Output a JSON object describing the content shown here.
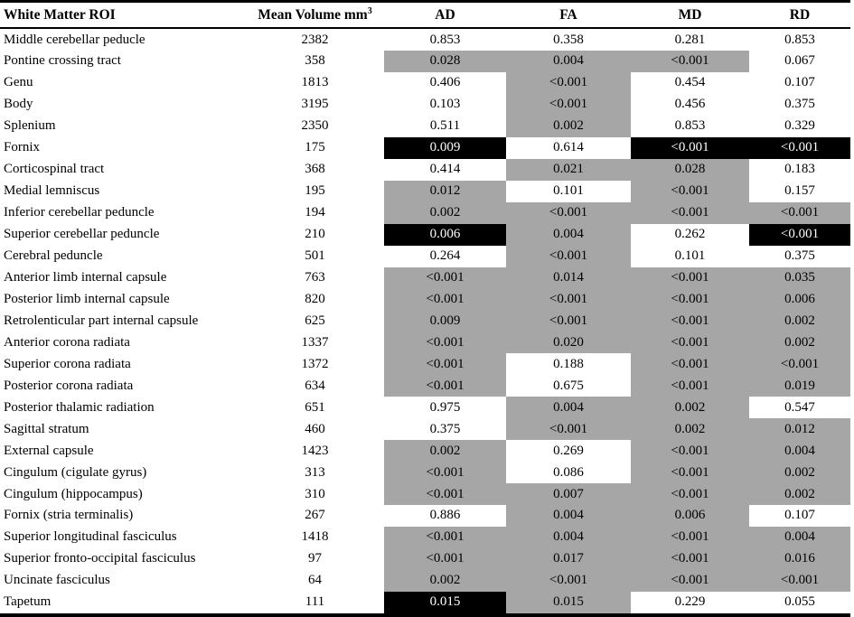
{
  "header": {
    "roi": "White Matter ROI",
    "volume_label": "Mean Volume mm",
    "volume_sup": "3",
    "metrics": [
      "AD",
      "FA",
      "MD",
      "RD"
    ]
  },
  "colors": {
    "cell_gray": "#a6a6a6",
    "cell_black": "#000000",
    "text": "#000000",
    "highlight_text": "#ffffff"
  },
  "rows": [
    {
      "roi": "Middle cerebellar peducle",
      "volume": "2382",
      "cells": [
        {
          "value": "0.853",
          "shade": "none"
        },
        {
          "value": "0.358",
          "shade": "none"
        },
        {
          "value": "0.281",
          "shade": "none"
        },
        {
          "value": "0.853",
          "shade": "none"
        }
      ]
    },
    {
      "roi": "Pontine crossing tract",
      "volume": "358",
      "cells": [
        {
          "value": "0.028",
          "shade": "gray"
        },
        {
          "value": "0.004",
          "shade": "gray"
        },
        {
          "value": "<0.001",
          "shade": "gray"
        },
        {
          "value": "0.067",
          "shade": "none"
        }
      ]
    },
    {
      "roi": "Genu",
      "volume": "1813",
      "cells": [
        {
          "value": "0.406",
          "shade": "none"
        },
        {
          "value": "<0.001",
          "shade": "gray"
        },
        {
          "value": "0.454",
          "shade": "none"
        },
        {
          "value": "0.107",
          "shade": "none"
        }
      ]
    },
    {
      "roi": "Body",
      "volume": "3195",
      "cells": [
        {
          "value": "0.103",
          "shade": "none"
        },
        {
          "value": "<0.001",
          "shade": "gray"
        },
        {
          "value": "0.456",
          "shade": "none"
        },
        {
          "value": "0.375",
          "shade": "none"
        }
      ]
    },
    {
      "roi": "Splenium",
      "volume": "2350",
      "cells": [
        {
          "value": "0.511",
          "shade": "none"
        },
        {
          "value": "0.002",
          "shade": "gray"
        },
        {
          "value": "0.853",
          "shade": "none"
        },
        {
          "value": "0.329",
          "shade": "none"
        }
      ]
    },
    {
      "roi": "Fornix",
      "volume": "175",
      "cells": [
        {
          "value": "0.009",
          "shade": "black"
        },
        {
          "value": "0.614",
          "shade": "none"
        },
        {
          "value": "<0.001",
          "shade": "black"
        },
        {
          "value": "<0.001",
          "shade": "black"
        }
      ]
    },
    {
      "roi": "Corticospinal tract",
      "volume": "368",
      "cells": [
        {
          "value": "0.414",
          "shade": "none"
        },
        {
          "value": "0.021",
          "shade": "gray"
        },
        {
          "value": "0.028",
          "shade": "gray"
        },
        {
          "value": "0.183",
          "shade": "none"
        }
      ]
    },
    {
      "roi": "Medial lemniscus",
      "volume": "195",
      "cells": [
        {
          "value": "0.012",
          "shade": "gray"
        },
        {
          "value": "0.101",
          "shade": "none"
        },
        {
          "value": "<0.001",
          "shade": "gray"
        },
        {
          "value": "0.157",
          "shade": "none"
        }
      ]
    },
    {
      "roi": "Inferior cerebellar peduncle",
      "volume": "194",
      "cells": [
        {
          "value": "0.002",
          "shade": "gray"
        },
        {
          "value": "<0.001",
          "shade": "gray"
        },
        {
          "value": "<0.001",
          "shade": "gray"
        },
        {
          "value": "<0.001",
          "shade": "gray"
        }
      ]
    },
    {
      "roi": "Superior cerebellar peduncle",
      "volume": "210",
      "cells": [
        {
          "value": "0.006",
          "shade": "black"
        },
        {
          "value": "0.004",
          "shade": "gray"
        },
        {
          "value": "0.262",
          "shade": "none"
        },
        {
          "value": "<0.001",
          "shade": "black"
        }
      ]
    },
    {
      "roi": "Cerebral peduncle",
      "volume": "501",
      "cells": [
        {
          "value": "0.264",
          "shade": "none"
        },
        {
          "value": "<0.001",
          "shade": "gray"
        },
        {
          "value": "0.101",
          "shade": "none"
        },
        {
          "value": "0.375",
          "shade": "none"
        }
      ]
    },
    {
      "roi": "Anterior limb internal capsule",
      "volume": "763",
      "cells": [
        {
          "value": "<0.001",
          "shade": "gray"
        },
        {
          "value": "0.014",
          "shade": "gray"
        },
        {
          "value": "<0.001",
          "shade": "gray"
        },
        {
          "value": "0.035",
          "shade": "gray"
        }
      ]
    },
    {
      "roi": "Posterior limb internal capsule",
      "volume": "820",
      "cells": [
        {
          "value": "<0.001",
          "shade": "gray"
        },
        {
          "value": "<0.001",
          "shade": "gray"
        },
        {
          "value": "<0.001",
          "shade": "gray"
        },
        {
          "value": "0.006",
          "shade": "gray"
        }
      ]
    },
    {
      "roi": "Retrolenticular part internal capsule",
      "volume": "625",
      "cells": [
        {
          "value": "0.009",
          "shade": "gray"
        },
        {
          "value": "<0.001",
          "shade": "gray"
        },
        {
          "value": "<0.001",
          "shade": "gray"
        },
        {
          "value": "0.002",
          "shade": "gray"
        }
      ]
    },
    {
      "roi": "Anterior corona radiata",
      "volume": "1337",
      "cells": [
        {
          "value": "<0.001",
          "shade": "gray"
        },
        {
          "value": "0.020",
          "shade": "gray"
        },
        {
          "value": "<0.001",
          "shade": "gray"
        },
        {
          "value": "0.002",
          "shade": "gray"
        }
      ]
    },
    {
      "roi": "Superior corona radiata",
      "volume": "1372",
      "cells": [
        {
          "value": "<0.001",
          "shade": "gray"
        },
        {
          "value": "0.188",
          "shade": "none"
        },
        {
          "value": "<0.001",
          "shade": "gray"
        },
        {
          "value": "<0.001",
          "shade": "gray"
        }
      ]
    },
    {
      "roi": "Posterior corona radiata",
      "volume": "634",
      "cells": [
        {
          "value": "<0.001",
          "shade": "gray"
        },
        {
          "value": "0.675",
          "shade": "none"
        },
        {
          "value": "<0.001",
          "shade": "gray"
        },
        {
          "value": "0.019",
          "shade": "gray"
        }
      ]
    },
    {
      "roi": "Posterior thalamic radiation",
      "volume": "651",
      "cells": [
        {
          "value": "0.975",
          "shade": "none"
        },
        {
          "value": "0.004",
          "shade": "gray"
        },
        {
          "value": "0.002",
          "shade": "gray"
        },
        {
          "value": "0.547",
          "shade": "none"
        }
      ]
    },
    {
      "roi": "Sagittal stratum",
      "volume": "460",
      "cells": [
        {
          "value": "0.375",
          "shade": "none"
        },
        {
          "value": "<0.001",
          "shade": "gray"
        },
        {
          "value": "0.002",
          "shade": "gray"
        },
        {
          "value": "0.012",
          "shade": "gray"
        }
      ]
    },
    {
      "roi": "External capsule",
      "volume": "1423",
      "cells": [
        {
          "value": "0.002",
          "shade": "gray"
        },
        {
          "value": "0.269",
          "shade": "none"
        },
        {
          "value": "<0.001",
          "shade": "gray"
        },
        {
          "value": "0.004",
          "shade": "gray"
        }
      ]
    },
    {
      "roi": "Cingulum (cigulate gyrus)",
      "volume": "313",
      "cells": [
        {
          "value": "<0.001",
          "shade": "gray"
        },
        {
          "value": "0.086",
          "shade": "none"
        },
        {
          "value": "<0.001",
          "shade": "gray"
        },
        {
          "value": "0.002",
          "shade": "gray"
        }
      ]
    },
    {
      "roi": "Cingulum (hippocampus)",
      "volume": "310",
      "cells": [
        {
          "value": "<0.001",
          "shade": "gray"
        },
        {
          "value": "0.007",
          "shade": "gray"
        },
        {
          "value": "<0.001",
          "shade": "gray"
        },
        {
          "value": "0.002",
          "shade": "gray"
        }
      ]
    },
    {
      "roi": "Fornix (stria terminalis)",
      "volume": "267",
      "cells": [
        {
          "value": "0.886",
          "shade": "none"
        },
        {
          "value": "0.004",
          "shade": "gray"
        },
        {
          "value": "0.006",
          "shade": "gray"
        },
        {
          "value": "0.107",
          "shade": "none"
        }
      ]
    },
    {
      "roi": "Superior longitudinal fasciculus",
      "volume": "1418",
      "cells": [
        {
          "value": "<0.001",
          "shade": "gray"
        },
        {
          "value": "0.004",
          "shade": "gray"
        },
        {
          "value": "<0.001",
          "shade": "gray"
        },
        {
          "value": "0.004",
          "shade": "gray"
        }
      ]
    },
    {
      "roi": "Superior fronto-occipital fasciculus",
      "volume": "97",
      "cells": [
        {
          "value": "<0.001",
          "shade": "gray"
        },
        {
          "value": "0.017",
          "shade": "gray"
        },
        {
          "value": "<0.001",
          "shade": "gray"
        },
        {
          "value": "0.016",
          "shade": "gray"
        }
      ]
    },
    {
      "roi": "Uncinate fasciculus",
      "volume": "64",
      "cells": [
        {
          "value": "0.002",
          "shade": "gray"
        },
        {
          "value": "<0.001",
          "shade": "gray"
        },
        {
          "value": "<0.001",
          "shade": "gray"
        },
        {
          "value": "<0.001",
          "shade": "gray"
        }
      ]
    },
    {
      "roi": "Tapetum",
      "volume": "111",
      "cells": [
        {
          "value": "0.015",
          "shade": "black"
        },
        {
          "value": "0.015",
          "shade": "gray"
        },
        {
          "value": "0.229",
          "shade": "none"
        },
        {
          "value": "0.055",
          "shade": "none"
        }
      ]
    }
  ]
}
